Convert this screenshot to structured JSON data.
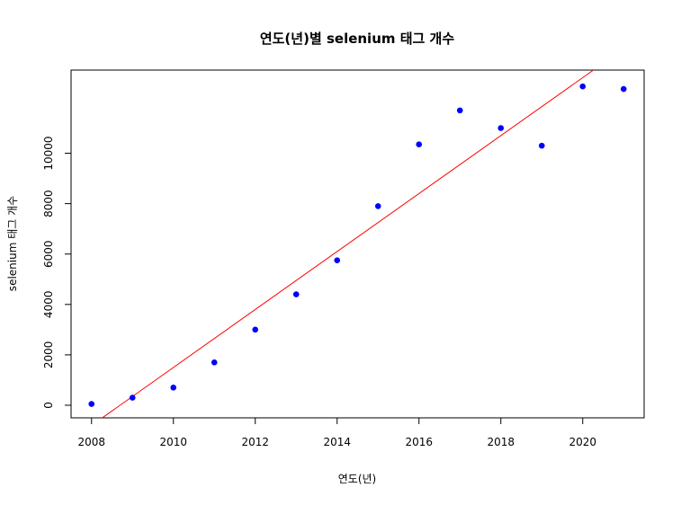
{
  "chart_data": {
    "type": "scatter",
    "title": "연도(년)별 selenium 태그 개수",
    "xlabel": "연도(년)",
    "ylabel": "selenium 태그 개수",
    "xlim": [
      2007.5,
      2021.5
    ],
    "ylim": [
      -500,
      13300
    ],
    "xticks": [
      "2008",
      "2010",
      "2012",
      "2014",
      "2016",
      "2018",
      "2020"
    ],
    "yticks": [
      "0",
      "2000",
      "4000",
      "6000",
      "8000",
      "10000"
    ],
    "point_color": "#0000ff",
    "line_color": "#ff0000",
    "grid": false,
    "points": [
      {
        "x": 2008,
        "y": 50
      },
      {
        "x": 2009,
        "y": 300
      },
      {
        "x": 2010,
        "y": 700
      },
      {
        "x": 2011,
        "y": 1700
      },
      {
        "x": 2012,
        "y": 3000
      },
      {
        "x": 2013,
        "y": 4400
      },
      {
        "x": 2014,
        "y": 5750
      },
      {
        "x": 2015,
        "y": 7900
      },
      {
        "x": 2016,
        "y": 10350
      },
      {
        "x": 2017,
        "y": 11700
      },
      {
        "x": 2018,
        "y": 11000
      },
      {
        "x": 2019,
        "y": 10300
      },
      {
        "x": 2020,
        "y": 12650
      },
      {
        "x": 2021,
        "y": 12550
      }
    ],
    "trend_line": {
      "x": [
        2008.28,
        2020.26
      ],
      "y": [
        -480,
        13300
      ]
    }
  }
}
